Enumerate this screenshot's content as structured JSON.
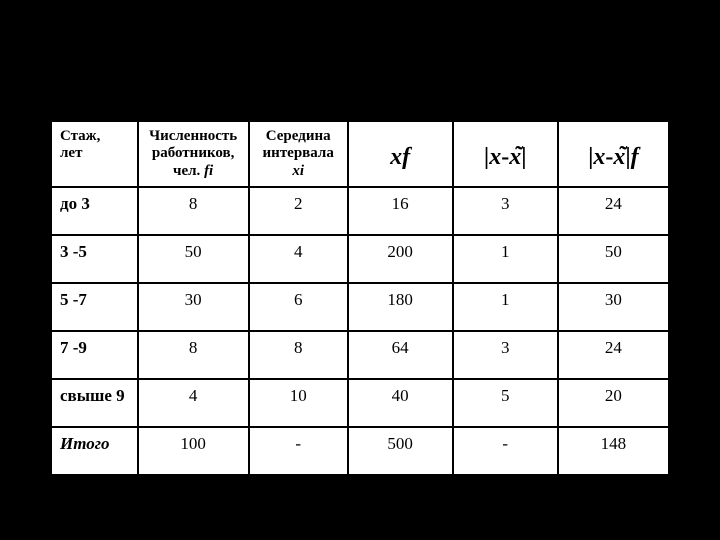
{
  "table": {
    "background_color": "#000000",
    "cell_background": "#ffffff",
    "border_color": "#000000",
    "text_color": "#000000",
    "header": {
      "col0_line1": "Стаж,",
      "col0_line2": "лет",
      "col1_line1": "Численность",
      "col1_line2": "работников,",
      "col1_sub_plain": "чел. ",
      "col1_sub_ital": "fi",
      "col2_line1": "Середина",
      "col2_line2": "интервала",
      "col2_sub_ital": "xi",
      "col3_formula_x": "x",
      "col3_formula_f": "f",
      "col4_bar1": "|",
      "col4_x1": "x",
      "col4_dash": "-",
      "col4_xbar": "x",
      "col4_bar2": "|",
      "col5_bar1": "|",
      "col5_x1": "x",
      "col5_dash": "-",
      "col5_xbar": "x",
      "col5_bar2": "|",
      "col5_f": "f"
    },
    "rows": [
      {
        "c0": "до 3",
        "c1": "8",
        "c2": "2",
        "c3": "16",
        "c4": "3",
        "c5": "24"
      },
      {
        "c0": "3 -5",
        "c1": "50",
        "c2": "4",
        "c3": "200",
        "c4": "1",
        "c5": "50"
      },
      {
        "c0": "5 -7",
        "c1": "30",
        "c2": "6",
        "c3": "180",
        "c4": "1",
        "c5": "30"
      },
      {
        "c0": "7 -9",
        "c1": "8",
        "c2": "8",
        "c3": "64",
        "c4": "3",
        "c5": "24"
      },
      {
        "c0": "свыше 9",
        "c1": "4",
        "c2": "10",
        "c3": "40",
        "c4": "5",
        "c5": "20"
      },
      {
        "c0": "Итого",
        "c1": "100",
        "c2": "-",
        "c3": "500",
        "c4": "-",
        "c5": "148"
      }
    ]
  }
}
